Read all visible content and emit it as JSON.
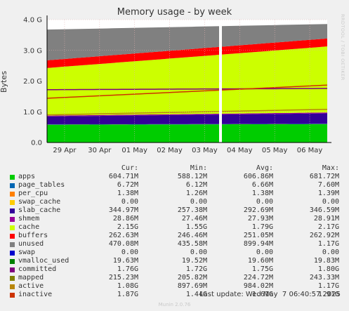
{
  "chart_data": {
    "type": "area",
    "title": "Memory usage - by week",
    "ylabel": "Bytes",
    "side_label": "RRDTOOL / TOBI OETIKER",
    "ylim": [
      0,
      4.0
    ],
    "yticks": [
      "0.0",
      "1.0 G",
      "2.0 G",
      "3.0 G",
      "4.0 G"
    ],
    "xticks": [
      "29 Apr",
      "30 Apr",
      "01 May",
      "02 May",
      "03 May",
      "04 May",
      "05 May",
      "06 May"
    ],
    "grid": true,
    "stacked_series_GB": [
      {
        "name": "apps",
        "color": "#00cc00",
        "start": 0.58,
        "end": 0.6
      },
      {
        "name": "page_tables",
        "color": "#0066b3",
        "start": 0.007,
        "end": 0.007
      },
      {
        "name": "per_cpu",
        "color": "#ff8000",
        "start": 0.0014,
        "end": 0.0014
      },
      {
        "name": "swap_cache",
        "color": "#ffcc00",
        "start": 0.0,
        "end": 0.0
      },
      {
        "name": "slab_cache",
        "color": "#330099",
        "start": 0.26,
        "end": 0.34
      },
      {
        "name": "shmem",
        "color": "#990099",
        "start": 0.028,
        "end": 0.029
      },
      {
        "name": "cache",
        "color": "#ccff00",
        "start": 1.55,
        "end": 2.15
      },
      {
        "name": "buffers",
        "color": "#ff0000",
        "start": 0.25,
        "end": 0.26
      },
      {
        "name": "unused",
        "color": "#808080",
        "start": 1.0,
        "end": 0.47
      }
    ],
    "line_series": [
      {
        "name": "committed",
        "start": 1.72,
        "end": 1.76
      },
      {
        "name": "active",
        "start": 0.9,
        "end": 1.08
      },
      {
        "name": "inactive",
        "start": 1.44,
        "end": 1.87
      }
    ]
  },
  "legend": {
    "headers": [
      "Cur:",
      "Min:",
      "Avg:",
      "Max:"
    ],
    "rows": [
      {
        "name": "apps",
        "color": "#00cc00",
        "cur": "604.71M",
        "min": "588.12M",
        "avg": "606.86M",
        "max": "681.72M"
      },
      {
        "name": "page_tables",
        "color": "#0066b3",
        "cur": "6.72M",
        "min": "6.12M",
        "avg": "6.66M",
        "max": "7.60M"
      },
      {
        "name": "per_cpu",
        "color": "#ff8000",
        "cur": "1.38M",
        "min": "1.26M",
        "avg": "1.38M",
        "max": "1.39M"
      },
      {
        "name": "swap_cache",
        "color": "#ffcc00",
        "cur": "0.00",
        "min": "0.00",
        "avg": "0.00",
        "max": "0.00"
      },
      {
        "name": "slab_cache",
        "color": "#330099",
        "cur": "344.97M",
        "min": "257.38M",
        "avg": "292.69M",
        "max": "346.59M"
      },
      {
        "name": "shmem",
        "color": "#990099",
        "cur": "28.86M",
        "min": "27.46M",
        "avg": "27.93M",
        "max": "28.91M"
      },
      {
        "name": "cache",
        "color": "#ccff00",
        "cur": "2.15G",
        "min": "1.55G",
        "avg": "1.79G",
        "max": "2.17G"
      },
      {
        "name": "buffers",
        "color": "#ff0000",
        "cur": "262.63M",
        "min": "246.46M",
        "avg": "251.05M",
        "max": "262.92M"
      },
      {
        "name": "unused",
        "color": "#808080",
        "cur": "470.08M",
        "min": "435.58M",
        "avg": "899.94M",
        "max": "1.17G"
      },
      {
        "name": "swap",
        "color": "#0000cc",
        "cur": "0.00",
        "min": "0.00",
        "avg": "0.00",
        "max": "0.00"
      },
      {
        "name": "vmalloc_used",
        "color": "#008000",
        "cur": "19.63M",
        "min": "19.52M",
        "avg": "19.60M",
        "max": "19.83M"
      },
      {
        "name": "committed",
        "color": "#800080",
        "cur": "1.76G",
        "min": "1.72G",
        "avg": "1.75G",
        "max": "1.80G"
      },
      {
        "name": "mapped",
        "color": "#808000",
        "cur": "215.23M",
        "min": "205.82M",
        "avg": "224.72M",
        "max": "243.33M"
      },
      {
        "name": "active",
        "color": "#b8860b",
        "cur": "1.08G",
        "min": "897.69M",
        "avg": "984.02M",
        "max": "1.17G"
      },
      {
        "name": "inactive",
        "color": "#cc3300",
        "cur": "1.87G",
        "min": "1.44G",
        "avg": "1.61G",
        "max": "1.91G"
      }
    ]
  },
  "last_update": "Last update: Wed May  7 06:40:57 2025",
  "footer": "Munin 2.0.76"
}
